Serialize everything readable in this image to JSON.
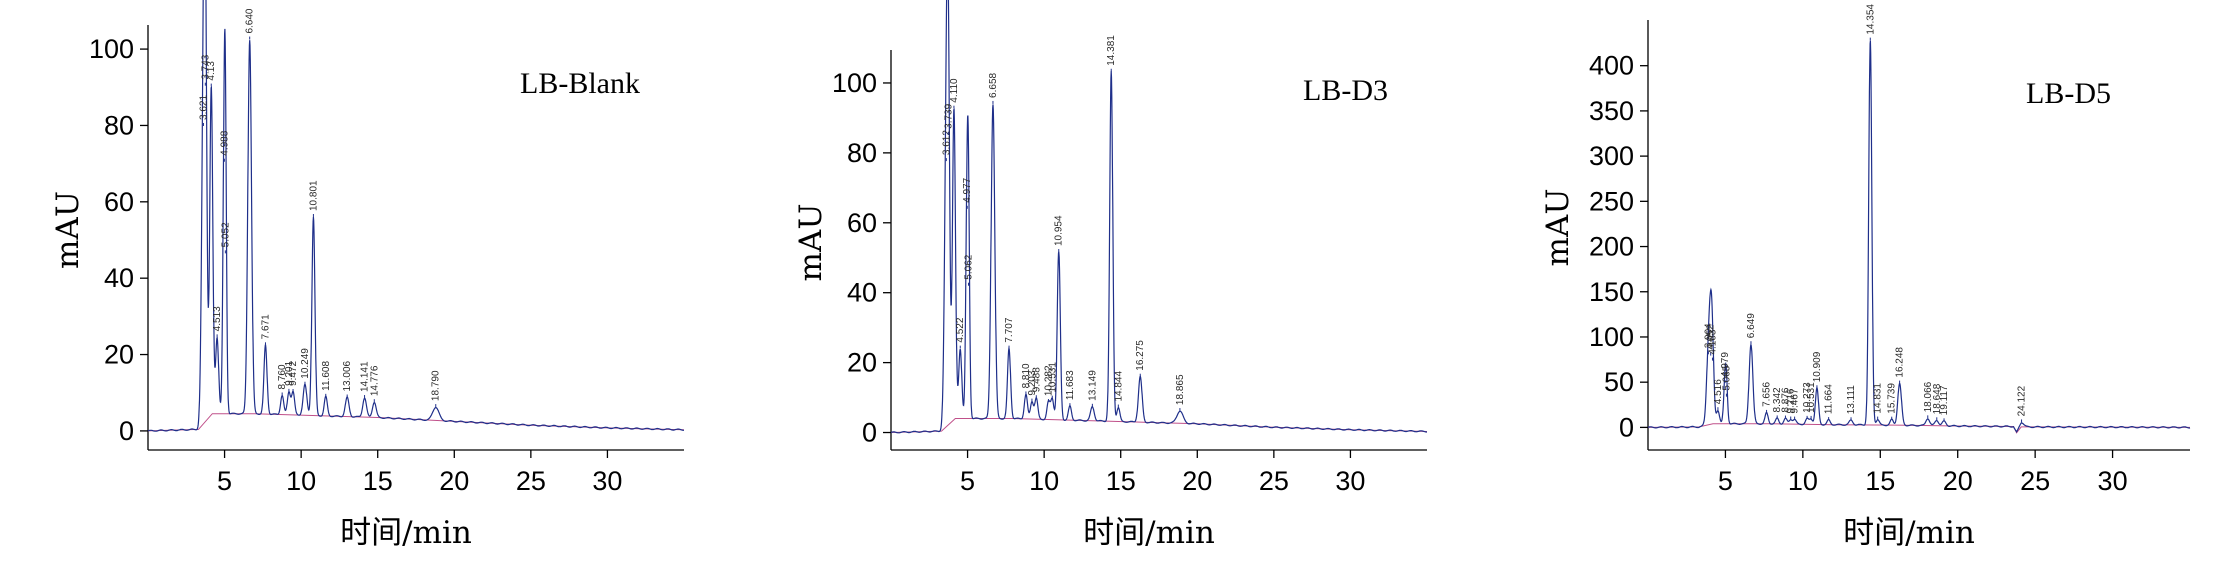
{
  "colors": {
    "trace": "#1f2f8a",
    "baseline": "#c0508a",
    "axis": "#000000"
  },
  "chart_data": [
    {
      "type": "line",
      "panel_label": "LB-Blank",
      "xlabel": "时间/min",
      "ylabel": "mAU",
      "xlim": [
        0,
        35
      ],
      "ylim": [
        -5,
        105
      ],
      "xticks": [
        5,
        10,
        15,
        20,
        25,
        30
      ],
      "yticks": [
        0,
        20,
        40,
        60,
        80,
        100
      ],
      "baseline": [
        [
          0,
          0
        ],
        [
          3.3,
          0.4
        ],
        [
          4.2,
          4.5
        ],
        [
          7,
          4.5
        ],
        [
          11,
          4
        ],
        [
          15,
          3.5
        ],
        [
          20,
          2.5
        ],
        [
          25,
          1.5
        ],
        [
          30,
          0.8
        ],
        [
          35,
          0.3
        ]
      ],
      "peaks": [
        {
          "rt": 3.621,
          "h": 78,
          "w": 0.12,
          "label": "3.621"
        },
        {
          "rt": 3.743,
          "h": 88,
          "w": 0.1,
          "label": "3.743"
        },
        {
          "rt": 4.13,
          "h": 86,
          "w": 0.1,
          "label": "4.13"
        },
        {
          "rt": 4.513,
          "h": 20,
          "w": 0.1,
          "label": "4.513"
        },
        {
          "rt": 4.988,
          "h": 66,
          "w": 0.09,
          "label": "4.988"
        },
        {
          "rt": 5.052,
          "h": 42,
          "w": 0.08,
          "label": "5.052"
        },
        {
          "rt": 6.64,
          "h": 98,
          "w": 0.12,
          "label": "6.640"
        },
        {
          "rt": 7.671,
          "h": 18,
          "w": 0.1,
          "label": "7.671"
        },
        {
          "rt": 8.76,
          "h": 5,
          "w": 0.1,
          "label": "8.760"
        },
        {
          "rt": 9.201,
          "h": 6,
          "w": 0.1,
          "label": "9.201"
        },
        {
          "rt": 9.472,
          "h": 6,
          "w": 0.1,
          "label": "9.472"
        },
        {
          "rt": 10.249,
          "h": 8,
          "w": 0.12,
          "label": "10.249"
        },
        {
          "rt": 10.801,
          "h": 52,
          "w": 0.1,
          "label": "10.801"
        },
        {
          "rt": 11.608,
          "h": 5,
          "w": 0.1,
          "label": "11.608"
        },
        {
          "rt": 13.006,
          "h": 5,
          "w": 0.12,
          "label": "13.006"
        },
        {
          "rt": 14.141,
          "h": 5,
          "w": 0.12,
          "label": "14.141"
        },
        {
          "rt": 14.776,
          "h": 4,
          "w": 0.12,
          "label": "14.776"
        },
        {
          "rt": 18.79,
          "h": 3.5,
          "w": 0.2,
          "label": "18.790"
        }
      ]
    },
    {
      "type": "line",
      "panel_label": "LB-D3",
      "xlabel": "时间/min",
      "ylabel": "mAU",
      "xlim": [
        0,
        35
      ],
      "ylim": [
        -5,
        108
      ],
      "xticks": [
        5,
        10,
        15,
        20,
        25,
        30
      ],
      "yticks": [
        0,
        20,
        40,
        60,
        80,
        100
      ],
      "baseline": [
        [
          0,
          0
        ],
        [
          3.3,
          0.4
        ],
        [
          4.2,
          4
        ],
        [
          8,
          4
        ],
        [
          12,
          3.5
        ],
        [
          16,
          3
        ],
        [
          20,
          2.5
        ],
        [
          25,
          1.5
        ],
        [
          30,
          0.8
        ],
        [
          35,
          0.3
        ]
      ],
      "peaks": [
        {
          "rt": 3.612,
          "h": 76,
          "w": 0.12,
          "label": "3.612"
        },
        {
          "rt": 3.739,
          "h": 83,
          "w": 0.1,
          "label": "3.739"
        },
        {
          "rt": 4.11,
          "h": 89,
          "w": 0.1,
          "label": "4.110"
        },
        {
          "rt": 4.522,
          "h": 20,
          "w": 0.1,
          "label": "4.522"
        },
        {
          "rt": 4.977,
          "h": 60,
          "w": 0.09,
          "label": "4.977"
        },
        {
          "rt": 5.062,
          "h": 38,
          "w": 0.08,
          "label": "5.062"
        },
        {
          "rt": 6.658,
          "h": 90,
          "w": 0.12,
          "label": "6.658"
        },
        {
          "rt": 7.707,
          "h": 20,
          "w": 0.1,
          "label": "7.707"
        },
        {
          "rt": 8.81,
          "h": 7,
          "w": 0.1,
          "label": "8.810"
        },
        {
          "rt": 9.203,
          "h": 5,
          "w": 0.1,
          "label": "9.203"
        },
        {
          "rt": 9.488,
          "h": 6,
          "w": 0.1,
          "label": "9.488"
        },
        {
          "rt": 10.282,
          "h": 5,
          "w": 0.1,
          "label": "10.282"
        },
        {
          "rt": 10.531,
          "h": 6,
          "w": 0.1,
          "label": "10.531"
        },
        {
          "rt": 10.954,
          "h": 48,
          "w": 0.1,
          "label": "10.954"
        },
        {
          "rt": 11.683,
          "h": 4,
          "w": 0.1,
          "label": "11.683"
        },
        {
          "rt": 13.149,
          "h": 4,
          "w": 0.12,
          "label": "13.149"
        },
        {
          "rt": 14.381,
          "h": 100,
          "w": 0.1,
          "label": "14.381"
        },
        {
          "rt": 14.844,
          "h": 4,
          "w": 0.1,
          "label": "14.844"
        },
        {
          "rt": 16.275,
          "h": 13,
          "w": 0.12,
          "label": "16.275"
        },
        {
          "rt": 18.865,
          "h": 3.5,
          "w": 0.2,
          "label": "18.865"
        }
      ]
    },
    {
      "type": "line",
      "panel_label": "LB-D5",
      "xlabel": "时间/min",
      "ylabel": "mAU",
      "xlim": [
        0,
        35
      ],
      "ylim": [
        -25,
        445
      ],
      "xticks": [
        5,
        10,
        15,
        20,
        25,
        30
      ],
      "yticks": [
        0,
        50,
        100,
        150,
        200,
        250,
        300,
        350,
        400
      ],
      "baseline": [
        [
          0,
          0
        ],
        [
          3.3,
          0.5
        ],
        [
          4.2,
          4
        ],
        [
          8,
          4
        ],
        [
          12,
          3
        ],
        [
          16,
          2.5
        ],
        [
          20,
          1.5
        ],
        [
          23.6,
          1
        ],
        [
          23.8,
          -6
        ],
        [
          24.1,
          0.5
        ],
        [
          30,
          0.3
        ],
        [
          35,
          0
        ]
      ],
      "peaks": [
        {
          "rt": 3.9,
          "h": 78,
          "w": 0.12,
          "label": "3.904"
        },
        {
          "rt": 4.05,
          "h": 76,
          "w": 0.1,
          "label": "4.052"
        },
        {
          "rt": 4.163,
          "h": 70,
          "w": 0.1,
          "label": "4.163"
        },
        {
          "rt": 4.516,
          "h": 15,
          "w": 0.1,
          "label": "4.516"
        },
        {
          "rt": 4.979,
          "h": 45,
          "w": 0.09,
          "label": "4.979"
        },
        {
          "rt": 5.065,
          "h": 30,
          "w": 0.08,
          "label": "5.065"
        },
        {
          "rt": 6.649,
          "h": 88,
          "w": 0.12,
          "label": "6.649"
        },
        {
          "rt": 7.656,
          "h": 12,
          "w": 0.1,
          "label": "7.656"
        },
        {
          "rt": 8.342,
          "h": 6,
          "w": 0.1,
          "label": "8.342"
        },
        {
          "rt": 8.876,
          "h": 6,
          "w": 0.1,
          "label": "8.876"
        },
        {
          "rt": 9.216,
          "h": 5,
          "w": 0.1,
          "label": "9.216"
        },
        {
          "rt": 9.467,
          "h": 5,
          "w": 0.1,
          "label": "9.467"
        },
        {
          "rt": 10.273,
          "h": 6,
          "w": 0.1,
          "label": "10.273"
        },
        {
          "rt": 10.531,
          "h": 6,
          "w": 0.1,
          "label": "10.531"
        },
        {
          "rt": 10.909,
          "h": 40,
          "w": 0.1,
          "label": "10.909"
        },
        {
          "rt": 11.664,
          "h": 5,
          "w": 0.1,
          "label": "11.664"
        },
        {
          "rt": 13.111,
          "h": 5,
          "w": 0.12,
          "label": "13.111"
        },
        {
          "rt": 14.354,
          "h": 425,
          "w": 0.1,
          "label": "14.354"
        },
        {
          "rt": 14.831,
          "h": 6,
          "w": 0.1,
          "label": "14.831"
        },
        {
          "rt": 15.739,
          "h": 6,
          "w": 0.1,
          "label": "15.739"
        },
        {
          "rt": 16.248,
          "h": 46,
          "w": 0.12,
          "label": "16.248"
        },
        {
          "rt": 18.066,
          "h": 8,
          "w": 0.12,
          "label": "18.066"
        },
        {
          "rt": 18.648,
          "h": 6,
          "w": 0.12,
          "label": "18.648"
        },
        {
          "rt": 19.117,
          "h": 5,
          "w": 0.12,
          "label": "19.117"
        },
        {
          "rt": 24.122,
          "h": 5,
          "w": 0.15,
          "label": "24.122"
        }
      ]
    }
  ]
}
